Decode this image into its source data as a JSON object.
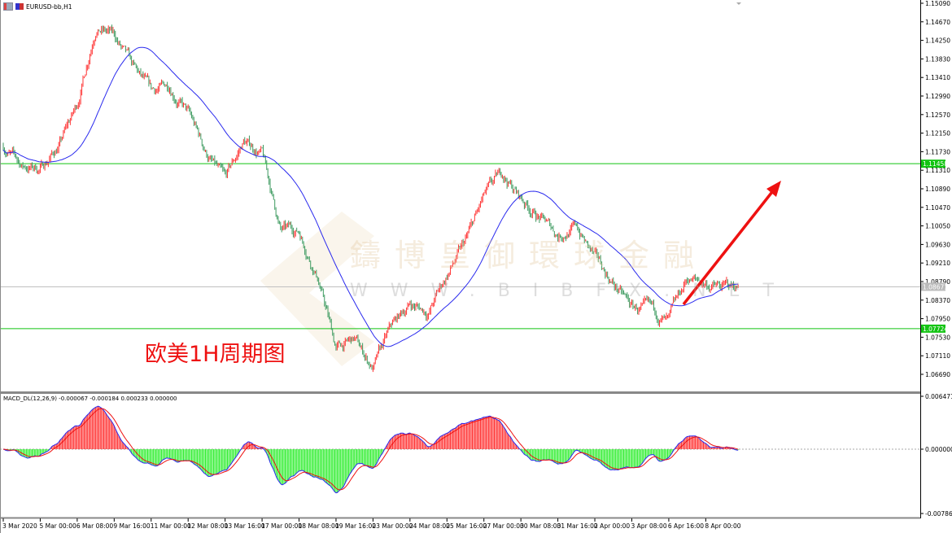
{
  "window": {
    "symbol_title": "EURUSD-bb,H1"
  },
  "annotation": {
    "label": "欧美1H周期图"
  },
  "watermark": {
    "brand": "鑄博皇御環球金融",
    "site": "WWW.BIBFX.NET"
  },
  "colors": {
    "bull": "#ff3333",
    "bear": "#3c9a5f",
    "ma": "#2a2aee",
    "level": "#12c412",
    "arrow": "#ee1111",
    "macd_line": "#2a2aee",
    "signal_line": "#ee1111",
    "hist_up": "#ff3333",
    "hist_down": "#33ee33"
  },
  "chart_data": [
    {
      "type": "candlestick",
      "timeframe": "H1",
      "ylim": [
        1.0648,
        1.1509
      ],
      "yticks": [
        "1.15090",
        "1.14670",
        "1.14250",
        "1.13830",
        "1.13410",
        "1.12990",
        "1.12570",
        "1.12150",
        "1.11730",
        "1.11310",
        "1.10890",
        "1.10470",
        "1.10050",
        "1.09630",
        "1.09210",
        "1.08790",
        "1.08370",
        "1.07950",
        "1.07530",
        "1.07110",
        "1.06690"
      ],
      "xticks": [
        "3 Mar 2020",
        "5 Mar 00:00",
        "6 Mar 08:00",
        "9 Mar 16:00",
        "11 Mar 00:00",
        "12 Mar 08:00",
        "13 Mar 16:00",
        "17 Mar 00:00",
        "18 Mar 08:00",
        "19 Mar 16:00",
        "23 Mar 00:00",
        "24 Mar 08:00",
        "25 Mar 16:00",
        "27 Mar 00:00",
        "30 Mar 08:00",
        "31 Mar 16:00",
        "2 Apr 00:00",
        "3 Apr 08:00",
        "6 Apr 16:00",
        "8 Apr 00:00"
      ],
      "approx_close_path": [
        [
          "2020-03-03 16:00",
          1.1186
        ],
        [
          "2020-03-04 08:00",
          1.114
        ],
        [
          "2020-03-05 00:00",
          1.1135
        ],
        [
          "2020-03-05 16:00",
          1.1186
        ],
        [
          "2020-03-06 08:00",
          1.1278
        ],
        [
          "2020-03-09 00:00",
          1.1461
        ],
        [
          "2020-03-09 16:00",
          1.1434
        ],
        [
          "2020-03-10 08:00",
          1.136
        ],
        [
          "2020-03-11 00:00",
          1.1305
        ],
        [
          "2020-03-11 16:00",
          1.1324
        ],
        [
          "2020-03-12 08:00",
          1.126
        ],
        [
          "2020-03-13 00:00",
          1.1168
        ],
        [
          "2020-03-13 16:00",
          1.1104
        ],
        [
          "2020-03-16 08:00",
          1.1195
        ],
        [
          "2020-03-17 00:00",
          1.1168
        ],
        [
          "2020-03-17 16:00",
          1.0994
        ],
        [
          "2020-03-18 08:00",
          1.0994
        ],
        [
          "2020-03-19 00:00",
          1.0893
        ],
        [
          "2020-03-19 16:00",
          1.0728
        ],
        [
          "2020-03-20 08:00",
          1.0746
        ],
        [
          "2020-03-23 00:00",
          1.0682
        ],
        [
          "2020-03-23 16:00",
          1.0774
        ],
        [
          "2020-03-24 08:00",
          1.0829
        ],
        [
          "2020-03-25 00:00",
          1.081
        ],
        [
          "2020-03-25 16:00",
          1.0893
        ],
        [
          "2020-03-26 08:00",
          1.0966
        ],
        [
          "2020-03-27 00:00",
          1.1067
        ],
        [
          "2020-03-27 16:00",
          1.1122
        ],
        [
          "2020-03-30 08:00",
          1.1067
        ],
        [
          "2020-03-31 00:00",
          1.1025
        ],
        [
          "2020-03-31 16:00",
          1.0985
        ],
        [
          "2020-04-01 08:00",
          1.1003
        ],
        [
          "2020-04-02 00:00",
          1.093
        ],
        [
          "2020-04-02 16:00",
          1.0874
        ],
        [
          "2020-04-03 08:00",
          1.0819
        ],
        [
          "2020-04-06 00:00",
          1.081
        ],
        [
          "2020-04-06 16:00",
          1.0783
        ],
        [
          "2020-04-07 08:00",
          1.0884
        ],
        [
          "2020-04-08 00:00",
          1.0874
        ],
        [
          "2020-04-08 12:00",
          1.0865
        ],
        [
          "2020-04-09 04:00",
          1.0867
        ]
      ],
      "moving_average": {
        "present": true
      },
      "horizontal_levels": [
        {
          "price": "1.11458",
          "style": "support-resistance",
          "color": "#12c412"
        },
        {
          "price": "1.07724",
          "style": "support-resistance",
          "color": "#12c412"
        }
      ],
      "current_price": "1.08671",
      "arrow": {
        "direction": "up",
        "color": "#ee1111"
      }
    },
    {
      "type": "bar+line",
      "name": "MACD_DL",
      "header": "MACD_DL(12,26,9) -0.000067 -0.000184 0.000233 0.000000",
      "params": [
        12,
        26,
        9
      ],
      "values": {
        "macd": -6.7e-05,
        "signal": -0.000184,
        "histogram": 0.000233,
        "zero": 0.0
      },
      "ylim": [
        -0.007869,
        0.006471
      ],
      "yticks": [
        "0.006471",
        "0.000000",
        "-0.007869"
      ]
    }
  ]
}
